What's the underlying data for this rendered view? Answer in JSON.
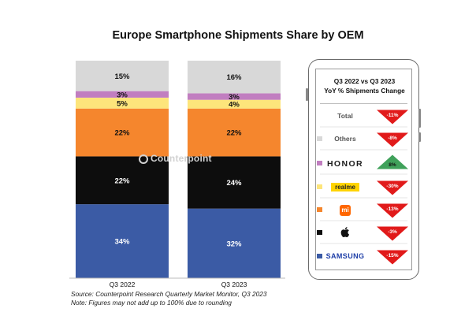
{
  "title": "Europe Smartphone Shipments Share by OEM",
  "watermark": "Counterpoint",
  "footnotes": {
    "source": "Source: Counterpoint Research Quarterly Market Monitor, Q3 2023",
    "note": "Note: Figures may not add up to 100% due to rounding"
  },
  "panel": {
    "title_line1": "Q3 2022 vs Q3 2023",
    "title_line2": "YoY % Shipments Change"
  },
  "brands": {
    "total": "Total",
    "others": "Others",
    "honor": "HONOR",
    "realme": "realme",
    "mi": "mi",
    "samsung": "SAMSUNG"
  },
  "colors": {
    "samsung": "#3b5ba5",
    "apple": "#0d0d0d",
    "xiaomi": "#f5862d",
    "realme": "#fde57b",
    "honor": "#c17ec0",
    "others": "#d8d8d8",
    "decline": "#e11a1a",
    "growth": "#3fa15a"
  },
  "icons": [
    "apple-icon",
    "phone-frame-icon",
    "down-arrow-icon",
    "up-arrow-icon",
    "counterpoint-logo-icon"
  ],
  "chart_data": [
    {
      "type": "bar",
      "stacked": true,
      "title": "Europe Smartphone Shipments Share by OEM",
      "categories": [
        "Q3 2022",
        "Q3 2023"
      ],
      "series": [
        {
          "key": "samsung",
          "values": [
            34,
            32
          ],
          "labels": [
            "34%",
            "32%"
          ],
          "label_color": "#ffffff"
        },
        {
          "key": "apple",
          "values": [
            22,
            24
          ],
          "labels": [
            "22%",
            "24%"
          ],
          "label_color": "#ffffff"
        },
        {
          "key": "xiaomi",
          "values": [
            22,
            22
          ],
          "labels": [
            "22%",
            "22%"
          ],
          "label_color": "#111111"
        },
        {
          "key": "realme",
          "values": [
            5,
            4
          ],
          "labels": [
            "5%",
            "4%"
          ],
          "label_color": "#111111"
        },
        {
          "key": "honor",
          "values": [
            3,
            3
          ],
          "labels": [
            "3%",
            "3%"
          ],
          "label_color": "#111111"
        },
        {
          "key": "others",
          "values": [
            15,
            16
          ],
          "labels": [
            "15%",
            "16%"
          ],
          "label_color": "#111111"
        }
      ],
      "ylim": [
        0,
        100
      ],
      "grid": false,
      "legend": "none"
    },
    {
      "type": "table",
      "title": "Q3 2022 vs Q3 2023 YoY % Shipments Change",
      "rows": [
        {
          "key": "total",
          "value": -11,
          "label": "-11%"
        },
        {
          "key": "others",
          "value": -8,
          "label": "-8%"
        },
        {
          "key": "honor",
          "value": 8,
          "label": "8%"
        },
        {
          "key": "realme",
          "value": -30,
          "label": "-30%"
        },
        {
          "key": "xiaomi",
          "value": -13,
          "label": "-13%"
        },
        {
          "key": "apple",
          "value": -3,
          "label": "-3%"
        },
        {
          "key": "samsung",
          "value": -15,
          "label": "-15%"
        }
      ]
    }
  ]
}
